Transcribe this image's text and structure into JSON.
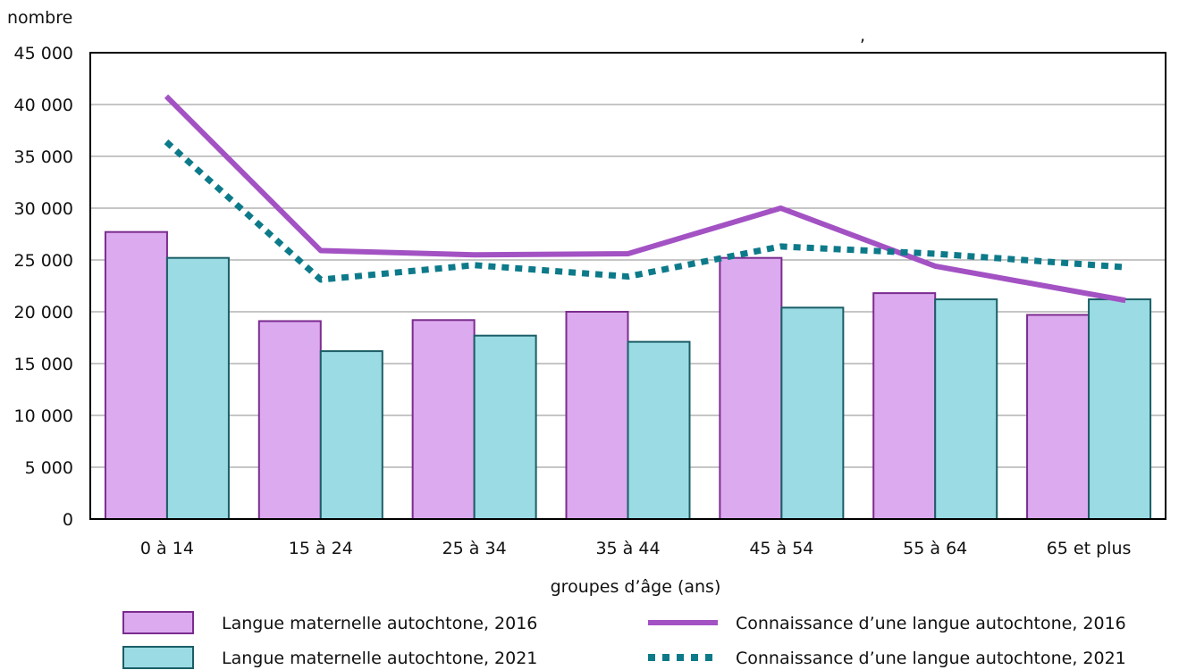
{
  "chart_data": {
    "type": "bar",
    "ylabel": "nombre",
    "xlabel": "groupes d’âge (ans)",
    "ylim": [
      0,
      45000
    ],
    "yticks": [
      {
        "value": 0,
        "label": "0"
      },
      {
        "value": 5000,
        "label": "5 000"
      },
      {
        "value": 10000,
        "label": "10 000"
      },
      {
        "value": 15000,
        "label": "15 000"
      },
      {
        "value": 20000,
        "label": "20 000"
      },
      {
        "value": 25000,
        "label": "25 000"
      },
      {
        "value": 30000,
        "label": "30 000"
      },
      {
        "value": 35000,
        "label": "35 000"
      },
      {
        "value": 40000,
        "label": "40 000"
      },
      {
        "value": 45000,
        "label": "45 000"
      }
    ],
    "grid": true,
    "categories": [
      "0 à 14",
      "15 à 24",
      "25 à 34",
      "35 à 44",
      "45 à 54",
      "55 à 64",
      "65 et plus"
    ],
    "series": [
      {
        "name": "Langue maternelle autochtone, 2016",
        "kind": "bar",
        "color": "#dcaaee",
        "stroke": "#7b2c8f",
        "values": [
          27700,
          19100,
          19200,
          20000,
          25200,
          21800,
          19700
        ]
      },
      {
        "name": "Langue maternelle autochtone, 2021",
        "kind": "bar",
        "color": "#9bdbe4",
        "stroke": "#1b5e66",
        "values": [
          25200,
          16200,
          17700,
          17100,
          20400,
          21200,
          21200
        ]
      },
      {
        "name": "Connaissance d’une langue autochtone, 2016",
        "kind": "line",
        "color": "#a352c3",
        "dash": "solid",
        "values": [
          40800,
          25900,
          25500,
          25600,
          30000,
          24400,
          21100
        ]
      },
      {
        "name": "Connaissance d’une langue autochtone, 2021",
        "kind": "line",
        "color": "#0d7a8a",
        "dash": "dotted",
        "values": [
          36400,
          23100,
          24500,
          23400,
          26300,
          25600,
          24300
        ]
      }
    ],
    "annotation": ",",
    "legend_position": "bottom"
  }
}
